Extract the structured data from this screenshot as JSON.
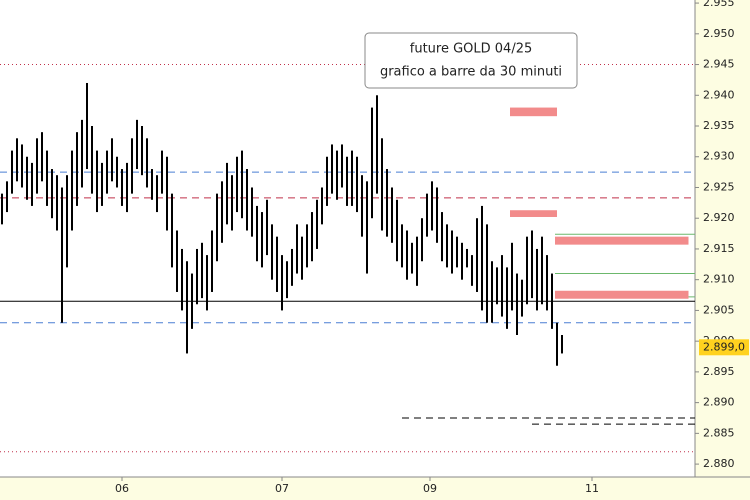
{
  "chart_data": {
    "type": "ohlc",
    "annotation": [
      "future GOLD 04/25",
      "grafico a barre da 30 minuti"
    ],
    "high": [
      2924,
      2926,
      2931,
      2933,
      2932,
      2930,
      2929,
      2933,
      2934,
      2931,
      2928,
      2927,
      2925,
      2927,
      2931,
      2934,
      2936,
      2942,
      2935,
      2931,
      2929,
      2931,
      2933,
      2930,
      2928,
      2929,
      2933,
      2936,
      2935,
      2933,
      2928,
      2927,
      2931,
      2930,
      2924,
      2918,
      2915,
      2913,
      2911,
      2915,
      2916,
      2914,
      2918,
      2924,
      2926,
      2929,
      2927,
      2930,
      2931,
      2928,
      2925,
      2922,
      2921,
      2923,
      2919,
      2917,
      2914,
      2913,
      2915,
      2919,
      2917,
      2919,
      2921,
      2923,
      2925,
      2930,
      2932,
      2931,
      2932,
      2930,
      2931,
      2930,
      2927,
      2926,
      2938,
      2940,
      2933,
      2928,
      2925,
      2923,
      2919,
      2918,
      2916,
      2917,
      2920,
      2924,
      2926,
      2925,
      2921,
      2919,
      2918,
      2917,
      2916,
      2915,
      2914,
      2920,
      2922,
      2919,
      2913,
      2912,
      2914,
      2912,
      2916,
      2911,
      2910,
      2917,
      2918,
      2915,
      2917,
      2914,
      2911,
      2903,
      2901
    ],
    "low": [
      2919,
      2921,
      2924,
      2926,
      2925,
      2923,
      2922,
      2924,
      2926,
      2922,
      2920,
      2918,
      2903,
      2912,
      2918,
      2922,
      2925,
      2928,
      2924,
      2921,
      2922,
      2924,
      2926,
      2925,
      2922,
      2921,
      2924,
      2928,
      2927,
      2925,
      2923,
      2921,
      2924,
      2918,
      2912,
      2908,
      2905,
      2898,
      2902,
      2906,
      2907,
      2905,
      2908,
      2913,
      2916,
      2919,
      2918,
      2921,
      2920,
      2918,
      2917,
      2913,
      2912,
      2914,
      2910,
      2908,
      2905,
      2907,
      2909,
      2911,
      2910,
      2912,
      2913,
      2915,
      2919,
      2922,
      2924,
      2923,
      2925,
      2922,
      2922,
      2921,
      2917,
      2911,
      2920,
      2924,
      2918,
      2917,
      2916,
      2913,
      2912,
      2910,
      2911,
      2909,
      2913,
      2917,
      2918,
      2916,
      2913,
      2912,
      2911,
      2912,
      2910,
      2912,
      2909,
      2908,
      2905,
      2903,
      2903,
      2906,
      2904,
      2902,
      2905,
      2901,
      2904,
      2906,
      2907,
      2905,
      2906,
      2905,
      2902,
      2896,
      2898
    ],
    "bar_color": "#000000",
    "xlim": [
      -0.4,
      138.6
    ],
    "xticks": [
      {
        "value": 24,
        "label": "06"
      },
      {
        "value": 56,
        "label": "07"
      },
      {
        "value": 85.6,
        "label": "09"
      },
      {
        "value": 118,
        "label": "11"
      }
    ],
    "ylim": [
      2877.9,
      2955.5
    ],
    "yticks": [
      {
        "value": 2880,
        "label": "2.880"
      },
      {
        "value": 2885,
        "label": "2.885"
      },
      {
        "value": 2890,
        "label": "2.890"
      },
      {
        "value": 2895,
        "label": "2.895"
      },
      {
        "value": 2900,
        "label": "2.900"
      },
      {
        "value": 2905,
        "label": "2.905"
      },
      {
        "value": 2910,
        "label": "2.910"
      },
      {
        "value": 2915,
        "label": "2.915"
      },
      {
        "value": 2920,
        "label": "2.920"
      },
      {
        "value": 2925,
        "label": "2.925"
      },
      {
        "value": 2930,
        "label": "2.930"
      },
      {
        "value": 2935,
        "label": "2.935"
      },
      {
        "value": 2940,
        "label": "2.940"
      },
      {
        "value": 2945,
        "label": "2.945"
      },
      {
        "value": 2950,
        "label": "2.950"
      },
      {
        "value": 2955,
        "label": "2.955"
      }
    ],
    "last_price": {
      "value": 2899.0,
      "label": "2.899,0",
      "color": "#ffd21f"
    },
    "levels": [
      {
        "value": 2945,
        "color": "#c0304a",
        "style": "dotted"
      },
      {
        "value": 2882,
        "color": "#c0304a",
        "style": "dotted"
      },
      {
        "value": 2927.5,
        "color": "#4a7fd4",
        "style": "dashed"
      },
      {
        "value": 2923.3,
        "color": "#c0304a",
        "style": "dashed"
      },
      {
        "value": 2906.5,
        "color": "#000000",
        "style": "solid"
      },
      {
        "value": 2903,
        "color": "#4a7fd4",
        "style": "dashed"
      },
      {
        "value": 2887.5,
        "color": "#000000",
        "style": "dashed",
        "from": 80
      },
      {
        "value": 2886.5,
        "color": "#000000",
        "style": "dashed",
        "from": 106
      },
      {
        "value": 2917.4,
        "color": "#6cb86c",
        "style": "solid",
        "from": 110.6
      },
      {
        "value": 2911,
        "color": "#6cb86c",
        "style": "solid",
        "from": 110.6
      },
      {
        "value": 2907.2,
        "color": "#6cb86c",
        "style": "solid",
        "from": 110.6
      }
    ],
    "zones": [
      {
        "low": 2936.6,
        "high": 2938,
        "from": 101.6,
        "to": 111,
        "color": "#f28b8b"
      },
      {
        "low": 2920.2,
        "high": 2921.3,
        "from": 101.6,
        "to": 111,
        "color": "#f28b8b"
      },
      {
        "low": 2915.7,
        "high": 2917,
        "from": 110.6,
        "to": 137.3,
        "color": "#f28b8b"
      },
      {
        "low": 2906.9,
        "high": 2908.2,
        "from": 110.6,
        "to": 137.3,
        "color": "#f28b8b"
      }
    ]
  }
}
